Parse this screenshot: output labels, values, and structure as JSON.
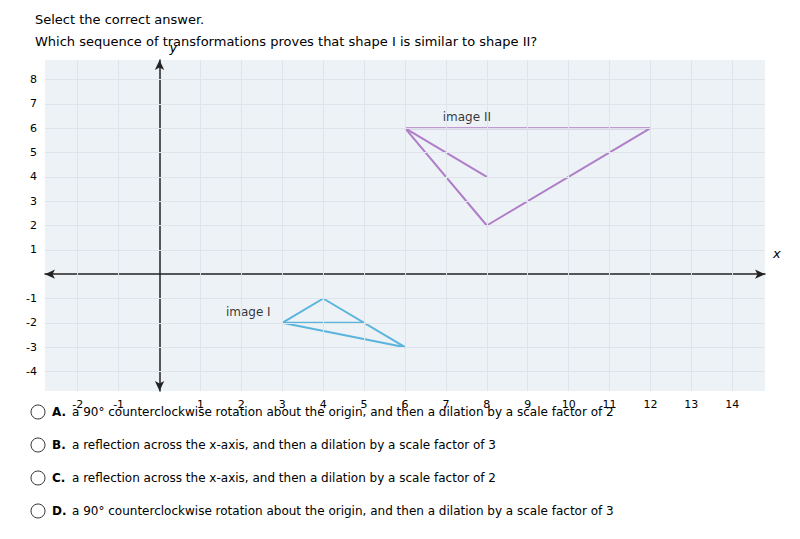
{
  "chart_data": {
    "type": "line",
    "title": "Select the correct answer.",
    "subtitle": "Which sequence of transformations proves that shape I is similar to shape II?",
    "xlabel": "x",
    "ylabel": "y",
    "xlim": [
      -2.8,
      14.8
    ],
    "ylim": [
      -4.8,
      8.8
    ],
    "xticks": [
      -2,
      -1,
      1,
      2,
      3,
      4,
      5,
      6,
      7,
      8,
      9,
      10,
      11,
      12,
      13,
      14
    ],
    "yticks": [
      -4,
      -3,
      -2,
      -1,
      1,
      2,
      3,
      4,
      5,
      6,
      7,
      8
    ],
    "grid": true,
    "series": [
      {
        "color": "#5ab4dc",
        "x": [
          3,
          4,
          6,
          3
        ],
        "values": [
          -2,
          -1,
          -3,
          -2
        ]
      },
      {
        "color": "#5ab4dc",
        "x": [
          3,
          5
        ],
        "values": [
          -2,
          -2
        ]
      },
      {
        "color": "#b07ec8",
        "x": [
          6,
          8,
          12,
          6
        ],
        "values": [
          6,
          2,
          6,
          6
        ]
      },
      {
        "color": "#b07ec8",
        "x": [
          6,
          8
        ],
        "values": [
          6,
          4
        ]
      }
    ],
    "annotations": [
      {
        "text": "image I",
        "x": 1.5,
        "y": -1.55
      },
      {
        "text": "image II",
        "x": 6.8,
        "y": 6.45
      },
      {
        "label": "A.",
        "text": "a 90° counterclockwise rotation about the origin, and then a dilation by a scale factor of 2"
      },
      {
        "label": "B.",
        "text": "a reflection across the x-axis, and then a dilation by a scale factor of 3"
      },
      {
        "label": "C.",
        "text": "a reflection across the x-axis, and then a dilation by a scale factor of 2"
      },
      {
        "label": "D.",
        "text": "a 90° counterclockwise rotation about the origin, and then a dilation by a scale factor of 3"
      }
    ]
  }
}
